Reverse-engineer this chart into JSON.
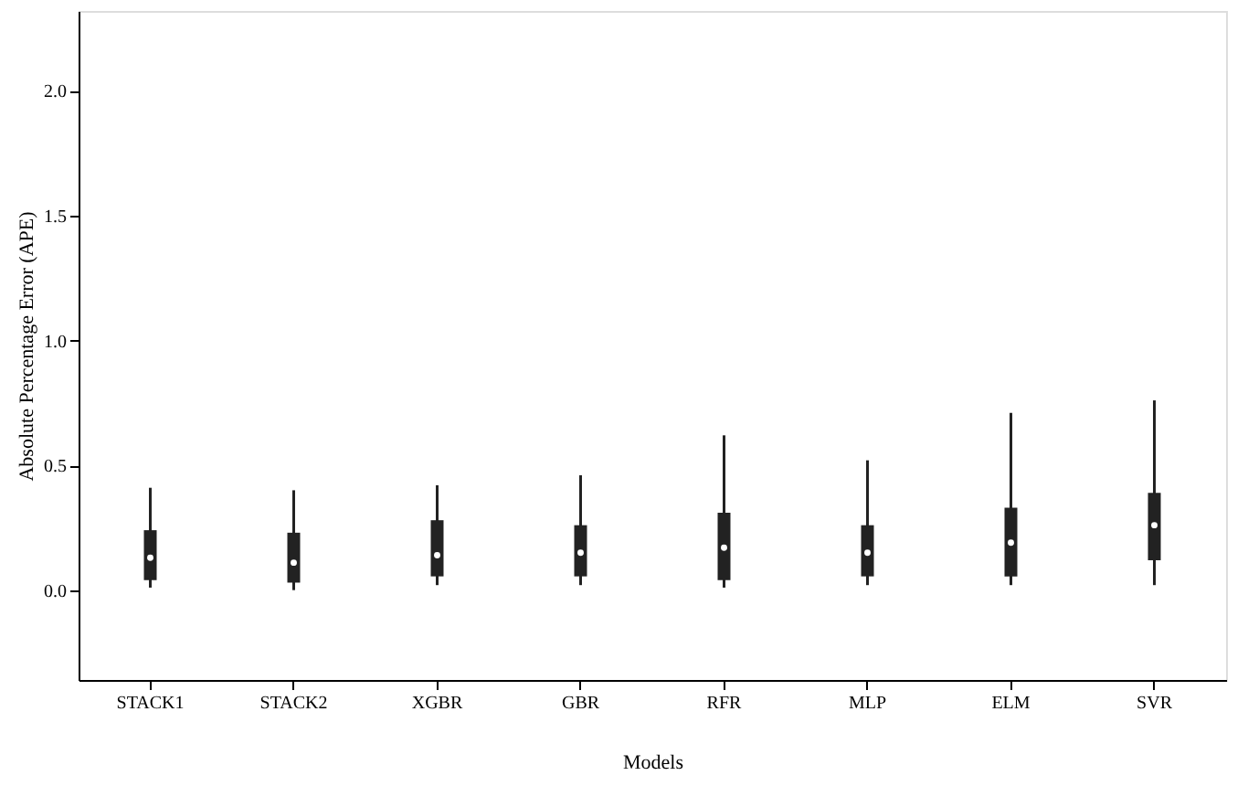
{
  "chart_data": {
    "type": "box",
    "xlabel": "Models",
    "ylabel": "Absolute Percentage Error (APE)",
    "categories": [
      "STACK1",
      "STACK2",
      "XGBR",
      "GBR",
      "RFR",
      "MLP",
      "ELM",
      "SVR"
    ],
    "color": "#222222",
    "boxes": [
      {
        "low": 0.01,
        "q1": 0.04,
        "median": 0.13,
        "q3": 0.24,
        "high": 0.41
      },
      {
        "low": 0.0,
        "q1": 0.03,
        "median": 0.11,
        "q3": 0.23,
        "high": 0.4
      },
      {
        "low": 0.02,
        "q1": 0.055,
        "median": 0.14,
        "q3": 0.28,
        "high": 0.42
      },
      {
        "low": 0.02,
        "q1": 0.055,
        "median": 0.15,
        "q3": 0.26,
        "high": 0.46
      },
      {
        "low": 0.01,
        "q1": 0.04,
        "median": 0.17,
        "q3": 0.31,
        "high": 0.62
      },
      {
        "low": 0.02,
        "q1": 0.055,
        "median": 0.15,
        "q3": 0.26,
        "high": 0.52
      },
      {
        "low": 0.02,
        "q1": 0.055,
        "median": 0.19,
        "q3": 0.33,
        "high": 0.71
      },
      {
        "low": 0.02,
        "q1": 0.12,
        "median": 0.26,
        "q3": 0.39,
        "high": 0.76
      }
    ],
    "ylim": [
      -0.36,
      2.32
    ],
    "yticks": [
      {
        "value": 0,
        "label": "0.0"
      },
      0.5,
      {
        "value": 1,
        "label": "1.0"
      },
      1.5,
      {
        "value": 2,
        "label": "2.0"
      }
    ],
    "grid": false
  }
}
